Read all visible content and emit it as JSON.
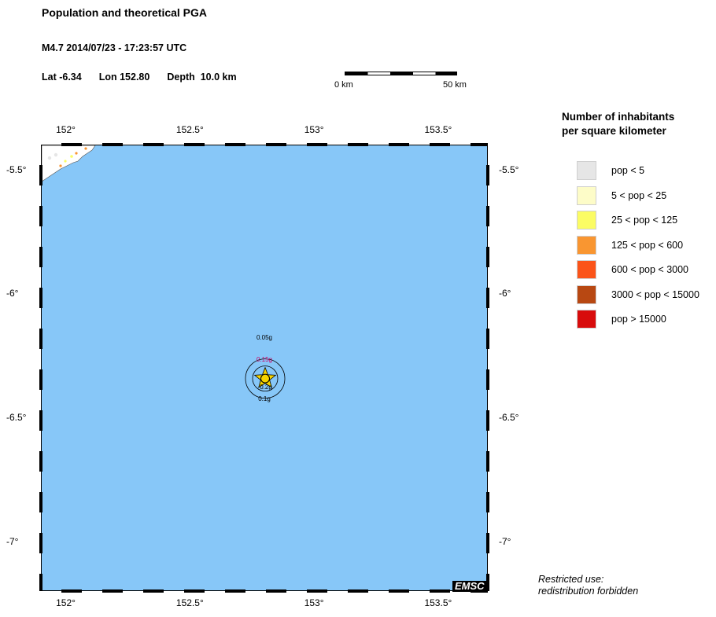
{
  "header": {
    "title": "Population and theoretical PGA",
    "event": "M4.7  2014/07/23 - 17:23:57 UTC",
    "lat": "Lat -6.34",
    "lon": "Lon 152.80",
    "depth": "Depth  10.0 km"
  },
  "scale": {
    "left_label": "0 km",
    "right_label": "50 km"
  },
  "map": {
    "lon_range": [
      151.9,
      153.7
    ],
    "lat_range": [
      -7.2,
      -5.4
    ],
    "lon_ticks": [
      {
        "value": 152.0,
        "label": "152°"
      },
      {
        "value": 152.5,
        "label": "152.5°"
      },
      {
        "value": 153.0,
        "label": "153°"
      },
      {
        "value": 153.5,
        "label": "153.5°"
      }
    ],
    "lat_ticks": [
      {
        "value": -5.5,
        "label": "-5.5°"
      },
      {
        "value": -6.0,
        "label": "-6°"
      },
      {
        "value": -6.5,
        "label": "-6.5°"
      },
      {
        "value": -7.0,
        "label": "-7°"
      }
    ],
    "epicenter": {
      "lat": -6.34,
      "lon": 152.8
    },
    "pga_contours": [
      {
        "label": "0.05g",
        "color": "#000000"
      },
      {
        "label": "0.15g",
        "color": "#cc0066"
      },
      {
        "label": "0.1g",
        "color": "#000000"
      },
      {
        "label": "0.2g",
        "color": "#000000"
      }
    ],
    "water_color": "#87c7f8",
    "land_color": "#ffffff",
    "credit": "EMSC"
  },
  "legend": {
    "title_line1": "Number of inhabitants",
    "title_line2": "per square kilometer",
    "items": [
      {
        "label": "pop < 5",
        "color": "#e6e6e6"
      },
      {
        "label": "5 < pop < 25",
        "color": "#fdfcc8"
      },
      {
        "label": "25 < pop < 125",
        "color": "#fbfc64"
      },
      {
        "label": "125 < pop < 600",
        "color": "#f99631"
      },
      {
        "label": "600 < pop < 3000",
        "color": "#fb5419"
      },
      {
        "label": "3000 < pop < 15000",
        "color": "#b84812"
      },
      {
        "label": "pop > 15000",
        "color": "#d80c0c"
      }
    ]
  },
  "footer": {
    "line1": "Restricted use:",
    "line2": "redistribution forbidden"
  }
}
